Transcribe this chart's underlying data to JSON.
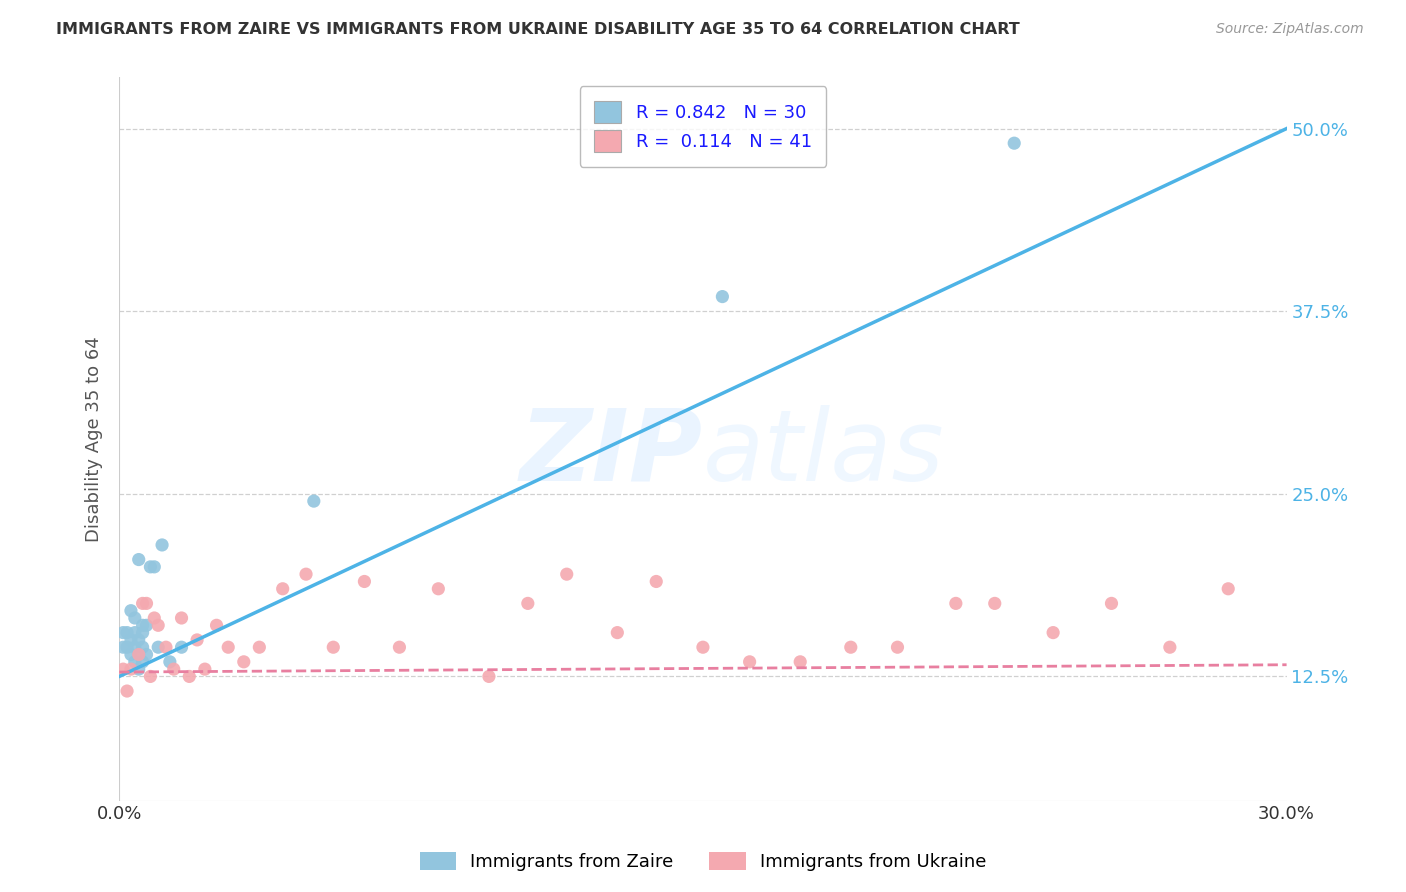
{
  "title": "IMMIGRANTS FROM ZAIRE VS IMMIGRANTS FROM UKRAINE DISABILITY AGE 35 TO 64 CORRELATION CHART",
  "source": "Source: ZipAtlas.com",
  "ylabel": "Disability Age 35 to 64",
  "x_min": 0.0,
  "x_max": 0.3,
  "y_min": 0.04,
  "y_max": 0.535,
  "x_ticks": [
    0.0,
    0.05,
    0.1,
    0.15,
    0.2,
    0.25,
    0.3
  ],
  "x_tick_labels": [
    "0.0%",
    "",
    "",
    "",
    "",
    "",
    "30.0%"
  ],
  "y_ticks": [
    0.125,
    0.25,
    0.375,
    0.5
  ],
  "y_tick_labels": [
    "12.5%",
    "25.0%",
    "37.5%",
    "50.0%"
  ],
  "legend_R1": "0.842",
  "legend_N1": "30",
  "legend_R2": "0.114",
  "legend_N2": "41",
  "color_zaire": "#92c5de",
  "color_ukraine": "#f4a9b0",
  "color_zaire_line": "#4db3e6",
  "color_ukraine_line": "#e87fa0",
  "zaire_scatter_x": [
    0.001,
    0.001,
    0.002,
    0.002,
    0.003,
    0.003,
    0.003,
    0.004,
    0.004,
    0.004,
    0.004,
    0.005,
    0.005,
    0.005,
    0.005,
    0.006,
    0.006,
    0.006,
    0.006,
    0.007,
    0.007,
    0.008,
    0.009,
    0.01,
    0.011,
    0.013,
    0.016,
    0.05,
    0.155,
    0.23
  ],
  "zaire_scatter_y": [
    0.145,
    0.155,
    0.145,
    0.155,
    0.14,
    0.15,
    0.17,
    0.135,
    0.145,
    0.155,
    0.165,
    0.13,
    0.14,
    0.15,
    0.205,
    0.135,
    0.145,
    0.155,
    0.16,
    0.14,
    0.16,
    0.2,
    0.2,
    0.145,
    0.215,
    0.135,
    0.145,
    0.245,
    0.385,
    0.49
  ],
  "ukraine_scatter_x": [
    0.001,
    0.002,
    0.003,
    0.005,
    0.006,
    0.007,
    0.008,
    0.009,
    0.01,
    0.012,
    0.014,
    0.016,
    0.018,
    0.02,
    0.022,
    0.025,
    0.028,
    0.032,
    0.036,
    0.042,
    0.048,
    0.055,
    0.063,
    0.072,
    0.082,
    0.095,
    0.105,
    0.115,
    0.128,
    0.138,
    0.15,
    0.162,
    0.175,
    0.188,
    0.2,
    0.215,
    0.225,
    0.24,
    0.255,
    0.27,
    0.285
  ],
  "ukraine_scatter_y": [
    0.13,
    0.115,
    0.13,
    0.14,
    0.175,
    0.175,
    0.125,
    0.165,
    0.16,
    0.145,
    0.13,
    0.165,
    0.125,
    0.15,
    0.13,
    0.16,
    0.145,
    0.135,
    0.145,
    0.185,
    0.195,
    0.145,
    0.19,
    0.145,
    0.185,
    0.125,
    0.175,
    0.195,
    0.155,
    0.19,
    0.145,
    0.135,
    0.135,
    0.145,
    0.145,
    0.175,
    0.175,
    0.155,
    0.175,
    0.145,
    0.185
  ],
  "grid_color": "#d0d0d0",
  "background_color": "#ffffff",
  "title_color": "#333333",
  "source_color": "#999999",
  "tick_color": "#4db3e6",
  "label_color": "#555555"
}
